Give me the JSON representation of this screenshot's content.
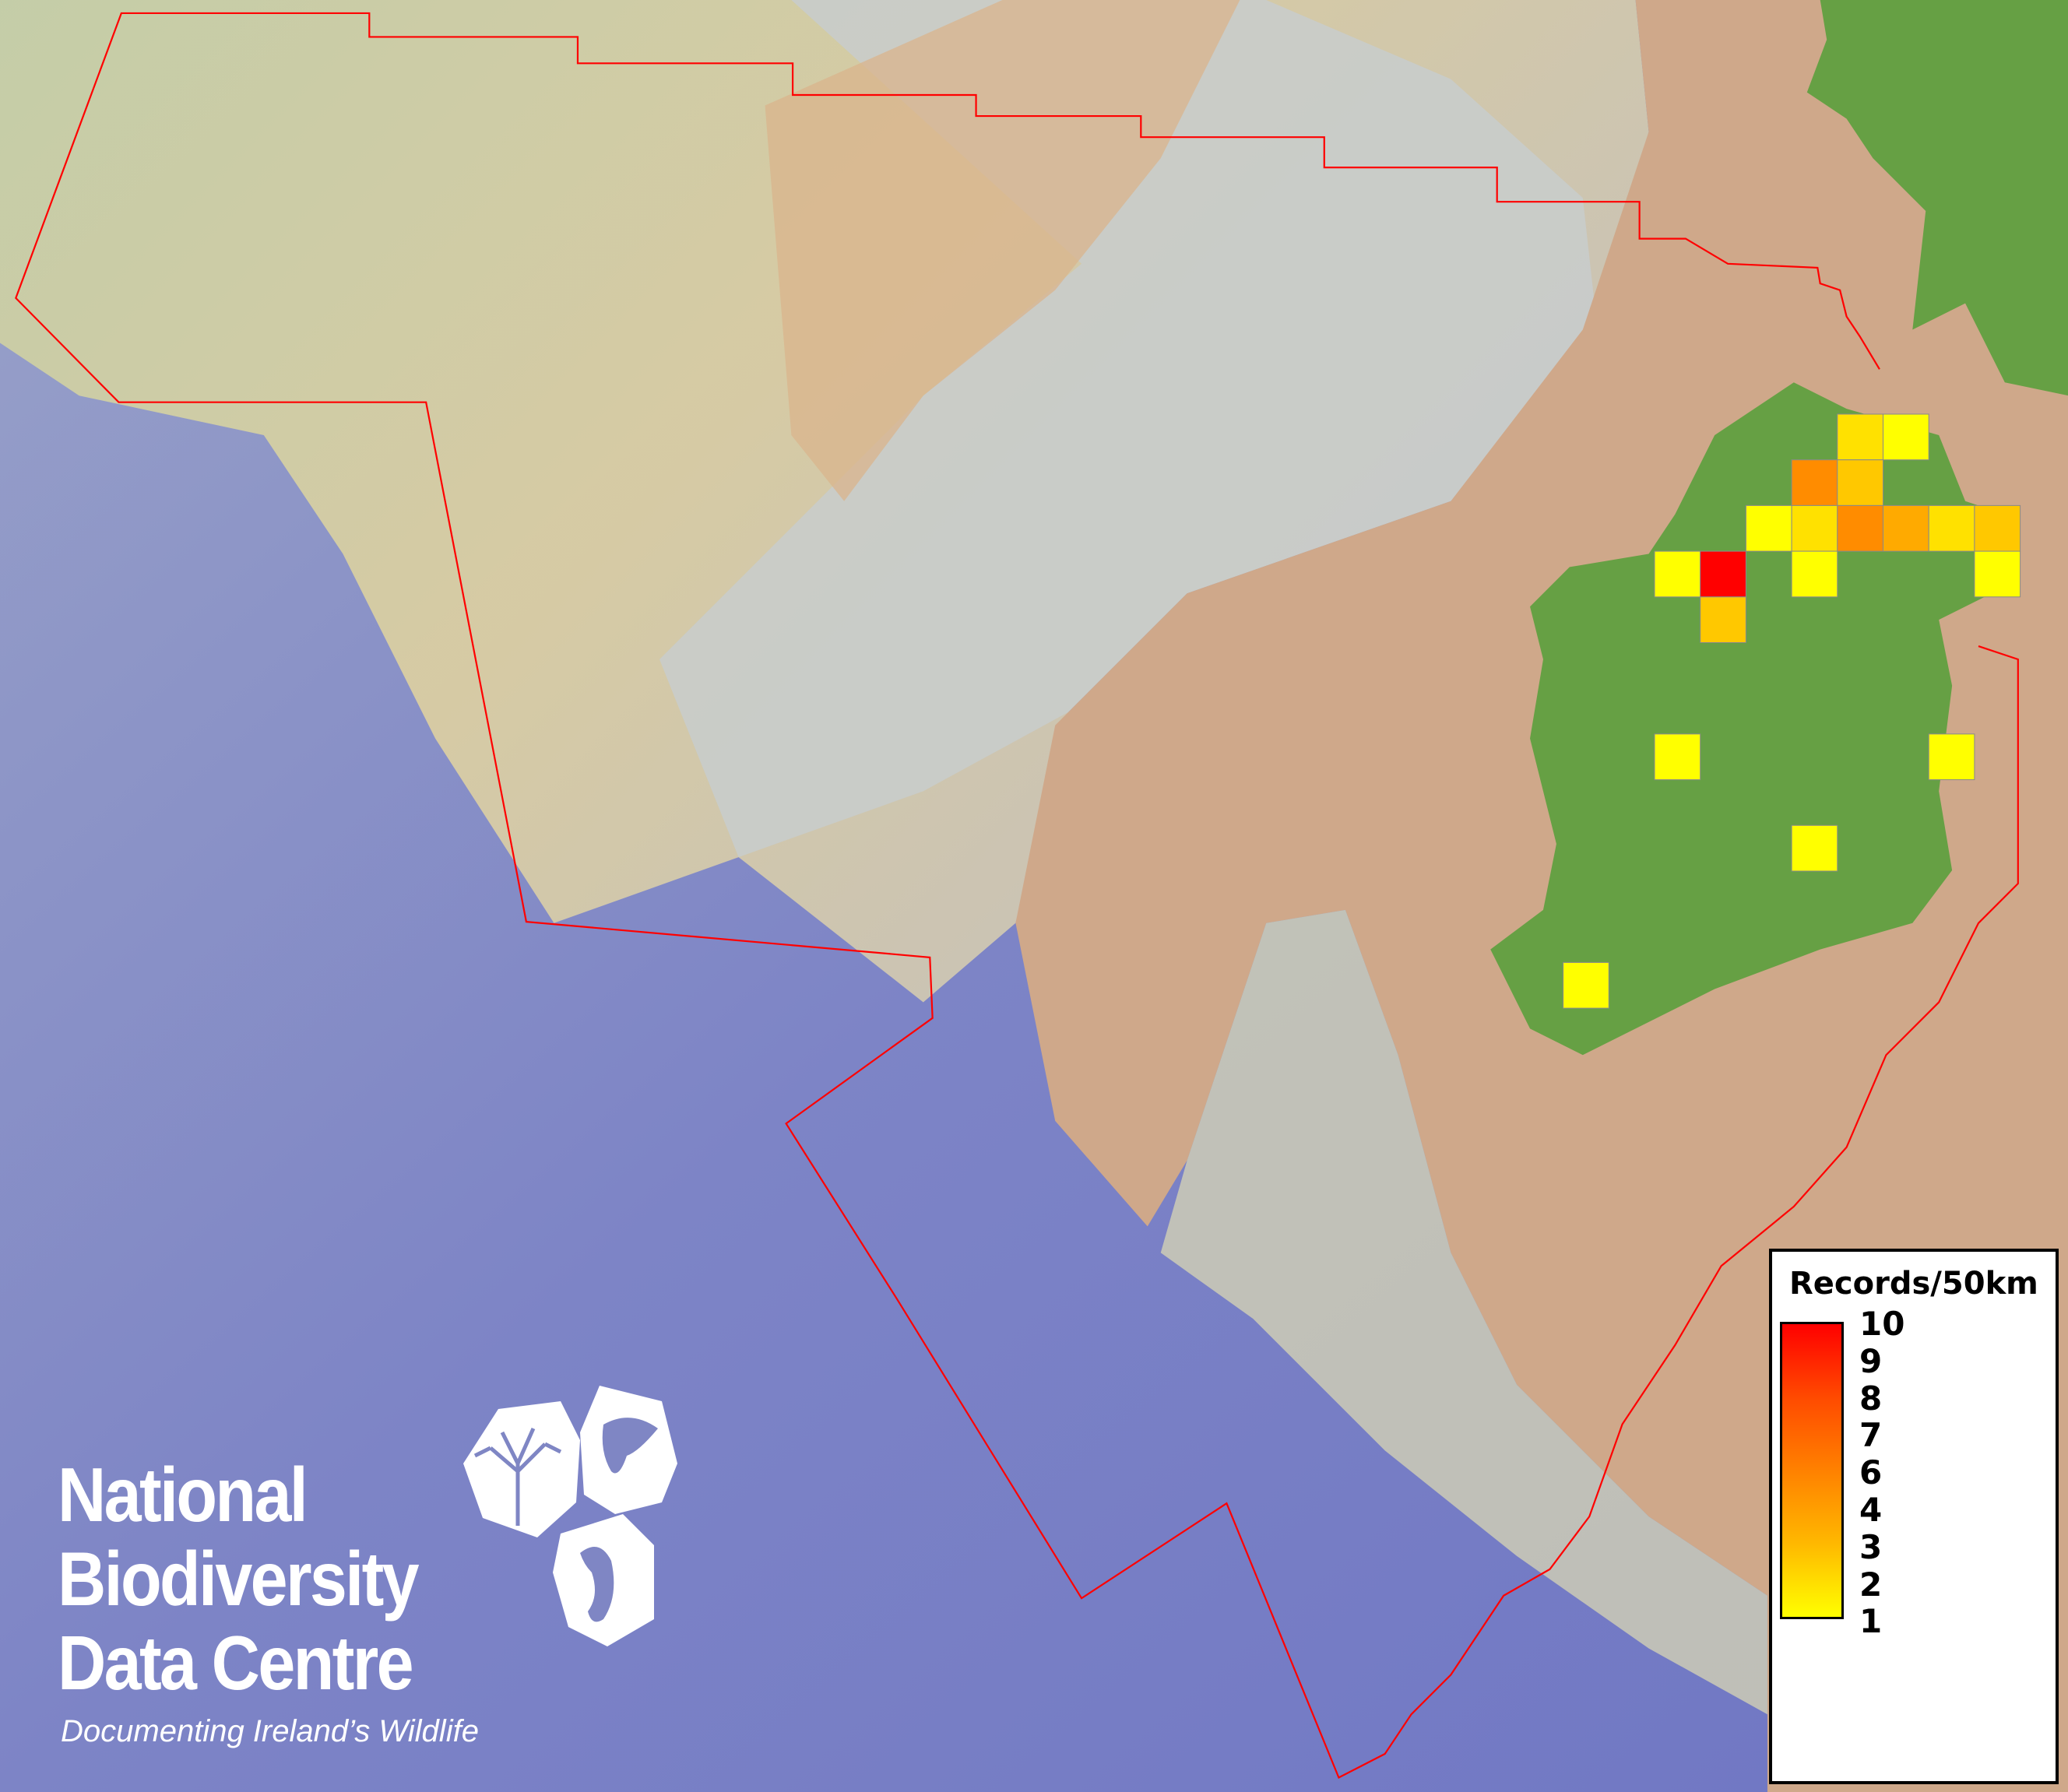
{
  "map": {
    "boundary_color": "#ff0000",
    "land_color": "#66a044",
    "sea_deep_color": "#7a80c8",
    "shelf_color": "#cfa88a",
    "grid_cell_size": "50km",
    "cells": [
      {
        "row": 0,
        "col": 4,
        "value": 2,
        "color": "#ffe100"
      },
      {
        "row": 0,
        "col": 5,
        "value": 1,
        "color": "#ffff00"
      },
      {
        "row": 1,
        "col": 3,
        "value": 5,
        "color": "#ff8c00"
      },
      {
        "row": 1,
        "col": 4,
        "value": 3,
        "color": "#ffc800"
      },
      {
        "row": 2,
        "col": 2,
        "value": 1,
        "color": "#ffff00"
      },
      {
        "row": 2,
        "col": 3,
        "value": 2,
        "color": "#ffe100"
      },
      {
        "row": 2,
        "col": 4,
        "value": 5,
        "color": "#ff8c00"
      },
      {
        "row": 2,
        "col": 5,
        "value": 4,
        "color": "#ffaa00"
      },
      {
        "row": 2,
        "col": 6,
        "value": 2,
        "color": "#ffe100"
      },
      {
        "row": 2,
        "col": 7,
        "value": 3,
        "color": "#ffc800"
      },
      {
        "row": 3,
        "col": 0,
        "value": 1,
        "color": "#ffff00"
      },
      {
        "row": 3,
        "col": 1,
        "value": 10,
        "color": "#ff0000"
      },
      {
        "row": 3,
        "col": 3,
        "value": 1,
        "color": "#ffff00"
      },
      {
        "row": 3,
        "col": 7,
        "value": 1,
        "color": "#ffff00"
      },
      {
        "row": 4,
        "col": 1,
        "value": 3,
        "color": "#ffc800"
      },
      {
        "row": 7,
        "col": 0,
        "value": 1,
        "color": "#ffff00"
      },
      {
        "row": 7,
        "col": 6,
        "value": 1,
        "color": "#ffff00"
      },
      {
        "row": 9,
        "col": 3,
        "value": 1,
        "color": "#ffff00"
      },
      {
        "row": 12,
        "col": -2,
        "value": 1,
        "color": "#ffff00"
      }
    ]
  },
  "legend": {
    "title": "Records/50km",
    "ticks": [
      "10",
      "9",
      "8",
      "7",
      "6",
      "4",
      "3",
      "2",
      "1"
    ],
    "color_max": "#ff0000",
    "color_min": "#ffff00"
  },
  "logo": {
    "line1": "National",
    "line2": "Biodiversity",
    "line3": "Data Centre",
    "tagline": "Documenting Ireland’s Wildlife",
    "icons": [
      "tree-icon",
      "butterfly-icon",
      "seahorse-icon"
    ]
  }
}
